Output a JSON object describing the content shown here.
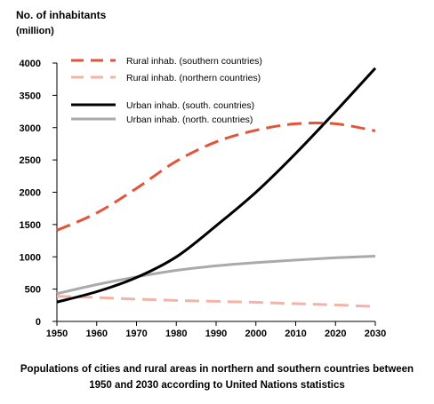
{
  "chart_data": {
    "type": "line",
    "ylabel_line1": "No. of inhabitants",
    "ylabel_line2": "(million)",
    "x": [
      1950,
      1960,
      1970,
      1980,
      1990,
      2000,
      2010,
      2020,
      2030
    ],
    "xticks": [
      "1950",
      "1960",
      "1970",
      "1980",
      "1990",
      "2000",
      "2010",
      "2020",
      "2030"
    ],
    "yticks": [
      "0",
      "500",
      "1000",
      "1500",
      "2000",
      "2500",
      "3000",
      "3500",
      "4000"
    ],
    "xlim": [
      1950,
      2030
    ],
    "ylim": [
      0,
      4000
    ],
    "grid": false,
    "legend_position": "top-left",
    "series": [
      {
        "name": "Rural inhab. (southern countries)",
        "color": "#e2553a",
        "style": "dashed",
        "width": 3,
        "values": [
          1410,
          1680,
          2060,
          2480,
          2780,
          2960,
          3060,
          3060,
          2950
        ]
      },
      {
        "name": "Rural inhab. (northern countries)",
        "color": "#f2b4a6",
        "style": "dashed",
        "width": 3,
        "values": [
          390,
          370,
          345,
          325,
          310,
          295,
          275,
          255,
          230
        ]
      },
      {
        "name": "Urban inhab. (south. countries)",
        "color": "#000000",
        "style": "solid",
        "width": 3,
        "values": [
          300,
          460,
          680,
          1000,
          1480,
          2000,
          2600,
          3250,
          3920
        ]
      },
      {
        "name": "Urban inhab. (north. countries)",
        "color": "#aaaaaa",
        "style": "solid",
        "width": 3,
        "values": [
          430,
          570,
          690,
          790,
          860,
          910,
          950,
          985,
          1010
        ]
      }
    ]
  },
  "caption": {
    "line1": "Populations of cities and rural areas in northern and southern countries between",
    "line2": "1950 and 2030 according to United Nations statistics"
  }
}
